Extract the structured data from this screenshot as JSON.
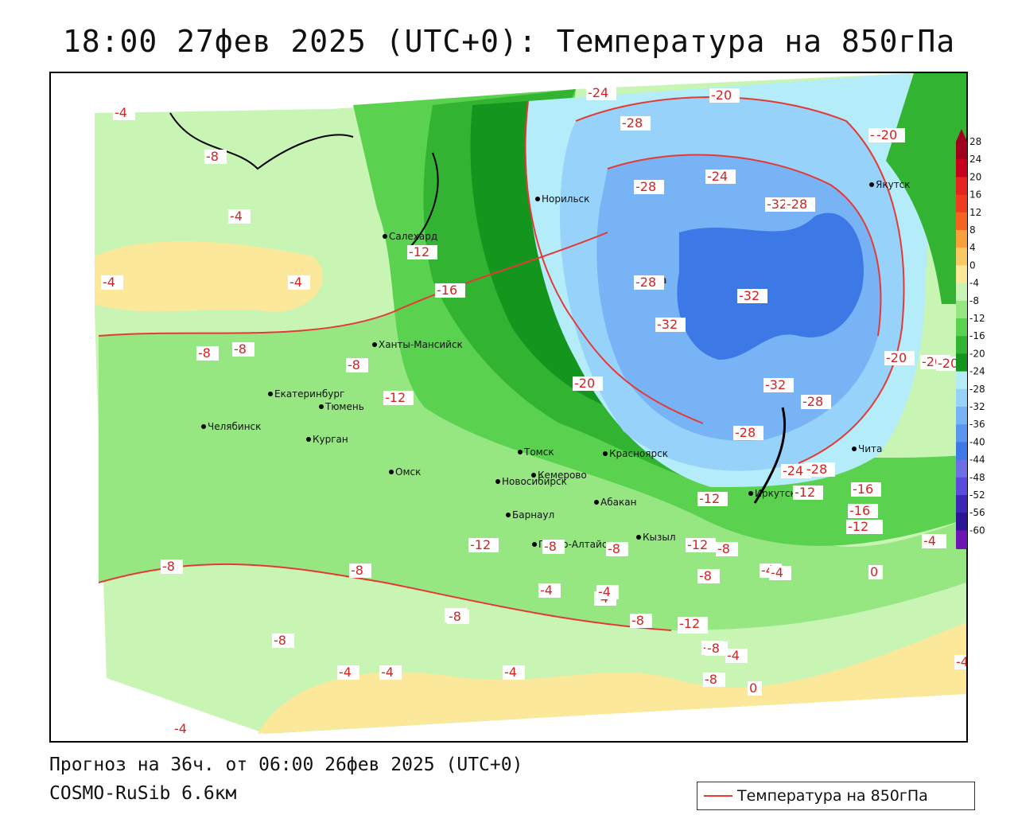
{
  "header": {
    "title": "18:00 27фев 2025 (UTC+0): Температура на 850гПа"
  },
  "footer": {
    "forecast": "Прогноз на 36ч. от 06:00 26фев 2025 (UTC+0)",
    "model": "COSMO-RuSib 6.6км"
  },
  "legend": {
    "label": "Температура на 850гПа",
    "line_color": "#e53935"
  },
  "colors": {
    "isotherm": "#e53935",
    "water_background": "#ffffff"
  },
  "colorbar": {
    "ticks": [
      "28",
      "24",
      "20",
      "16",
      "12",
      "8",
      "4",
      "0",
      "-4",
      "-8",
      "-12",
      "-16",
      "-20",
      "-24",
      "-28",
      "-32",
      "-36",
      "-40",
      "-44",
      "-48",
      "-52",
      "-56",
      "-60"
    ],
    "colors": [
      "#a0001e",
      "#c8001e",
      "#e6231e",
      "#f03c1e",
      "#f5641e",
      "#f7a03c",
      "#f8c864",
      "#fbe89a",
      "#c8f5b4",
      "#96e682",
      "#5ad250",
      "#32b432",
      "#14961e",
      "#b4ecfa",
      "#96d2fa",
      "#78b4f5",
      "#5a96f0",
      "#3c78e6",
      "#6e6ee6",
      "#5a4bdc",
      "#3c28b4",
      "#2d1496",
      "#6e14b4"
    ]
  },
  "cities": [
    {
      "name": "Норильск",
      "marker": "city-dot"
    },
    {
      "name": "Салехард",
      "marker": "city-dot"
    },
    {
      "name": "Тура",
      "marker": "city-dot"
    },
    {
      "name": "Якутск",
      "marker": "city-dot"
    },
    {
      "name": "Ханты-Мансийск",
      "marker": "city-dot"
    },
    {
      "name": "Екатеринбург",
      "marker": "city-dot"
    },
    {
      "name": "Тюмень",
      "marker": "city-dot"
    },
    {
      "name": "Челябинск",
      "marker": "city-dot"
    },
    {
      "name": "Курган",
      "marker": "city-dot"
    },
    {
      "name": "Омск",
      "marker": "city-dot"
    },
    {
      "name": "Новосибирск",
      "marker": "city-dot"
    },
    {
      "name": "Томск",
      "marker": "city-dot"
    },
    {
      "name": "Кемерово",
      "marker": "city-dot"
    },
    {
      "name": "Красноярск",
      "marker": "city-dot"
    },
    {
      "name": "Барнаул",
      "marker": "city-dot"
    },
    {
      "name": "Абакан",
      "marker": "city-dot"
    },
    {
      "name": "Горно-Алтайск",
      "marker": "city-dot"
    },
    {
      "name": "Кызыл",
      "marker": "city-dot"
    },
    {
      "name": "Иркутск",
      "marker": "city-dot"
    },
    {
      "name": "Чита",
      "marker": "city-dot"
    }
  ],
  "isotherm_labels": [
    "-4",
    "-8",
    "-4",
    "-4",
    "-4",
    "-8",
    "-8",
    "-8",
    "-12",
    "-12",
    "-16",
    "-20",
    "-24",
    "-28",
    "-28",
    "-20",
    "-24",
    "-28",
    "-32",
    "-28",
    "-32",
    "-32",
    "-32",
    "-28",
    "-28",
    "-24",
    "-20",
    "-20",
    "-28",
    "-20",
    "-16",
    "-12",
    "-12",
    "-8",
    "-8",
    "-12",
    "-8",
    "-4",
    "-4",
    "-8",
    "-8",
    "-8",
    "-12",
    "-8",
    "-4",
    "-4",
    "-4",
    "0",
    "0",
    "-4",
    "-8",
    "-8",
    "-4",
    "-12",
    "-8",
    "-4",
    "-4",
    "-16",
    "-12",
    "-8",
    "-4",
    "-8",
    "-12",
    "-8",
    "-4",
    "-20",
    "-20",
    "-12",
    "-4",
    "-4"
  ]
}
